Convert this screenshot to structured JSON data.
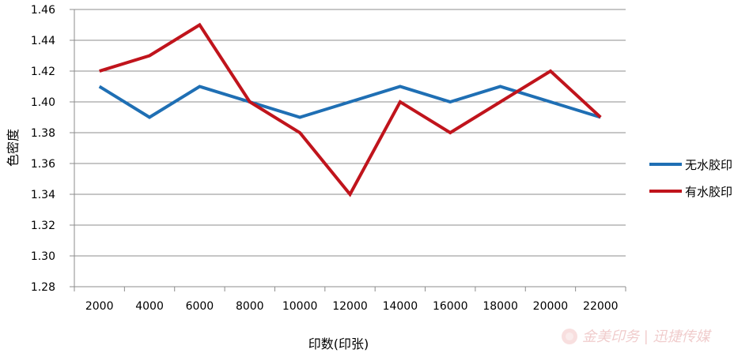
{
  "chart_data": {
    "type": "line",
    "title": "",
    "xlabel": "印数(印张)",
    "ylabel": "色密度",
    "categories": [
      "2000",
      "4000",
      "6000",
      "8000",
      "10000",
      "12000",
      "14000",
      "16000",
      "18000",
      "20000",
      "22000"
    ],
    "ylim": [
      1.28,
      1.46
    ],
    "yticks": [
      "1.28",
      "1.30",
      "1.32",
      "1.34",
      "1.36",
      "1.38",
      "1.40",
      "1.42",
      "1.44",
      "1.46"
    ],
    "grid": true,
    "legend_position": "right",
    "series": [
      {
        "name": "无水胶印",
        "color": "#1f6fb4",
        "values": [
          1.41,
          1.39,
          1.41,
          1.4,
          1.39,
          1.4,
          1.41,
          1.4,
          1.41,
          1.4,
          1.39
        ]
      },
      {
        "name": "有水胶印",
        "color": "#c0141c",
        "values": [
          1.42,
          1.43,
          1.45,
          1.4,
          1.38,
          1.34,
          1.4,
          1.38,
          1.4,
          1.42,
          1.39
        ]
      }
    ]
  },
  "watermark": {
    "text": "金美印务 | 迅捷传媒"
  }
}
